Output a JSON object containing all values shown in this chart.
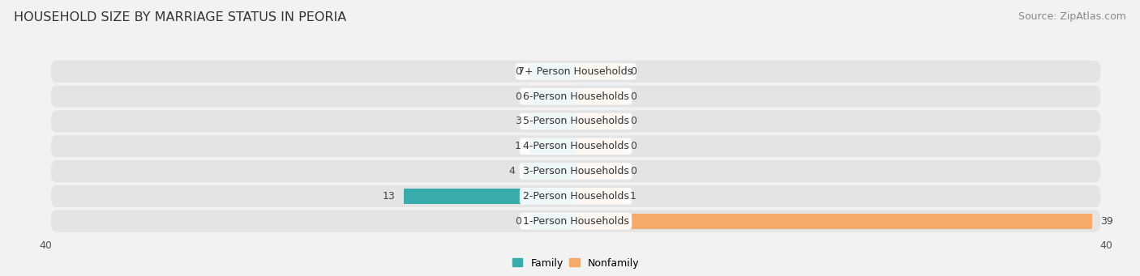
{
  "title": "HOUSEHOLD SIZE BY MARRIAGE STATUS IN PEORIA",
  "source": "Source: ZipAtlas.com",
  "categories": [
    "7+ Person Households",
    "6-Person Households",
    "5-Person Households",
    "4-Person Households",
    "3-Person Households",
    "2-Person Households",
    "1-Person Households"
  ],
  "family_values": [
    0,
    0,
    3,
    1,
    4,
    13,
    0
  ],
  "nonfamily_values": [
    0,
    0,
    0,
    0,
    0,
    1,
    39
  ],
  "family_color": "#3aabab",
  "nonfamily_color": "#f5a96a",
  "xlim": [
    -40,
    40
  ],
  "background_color": "#f2f2f2",
  "row_bg_color": "#e4e4e4",
  "title_fontsize": 11.5,
  "source_fontsize": 9,
  "label_fontsize": 9,
  "category_fontsize": 9,
  "tick_fontsize": 9,
  "bar_height": 0.62,
  "min_bar_width": 3.5
}
